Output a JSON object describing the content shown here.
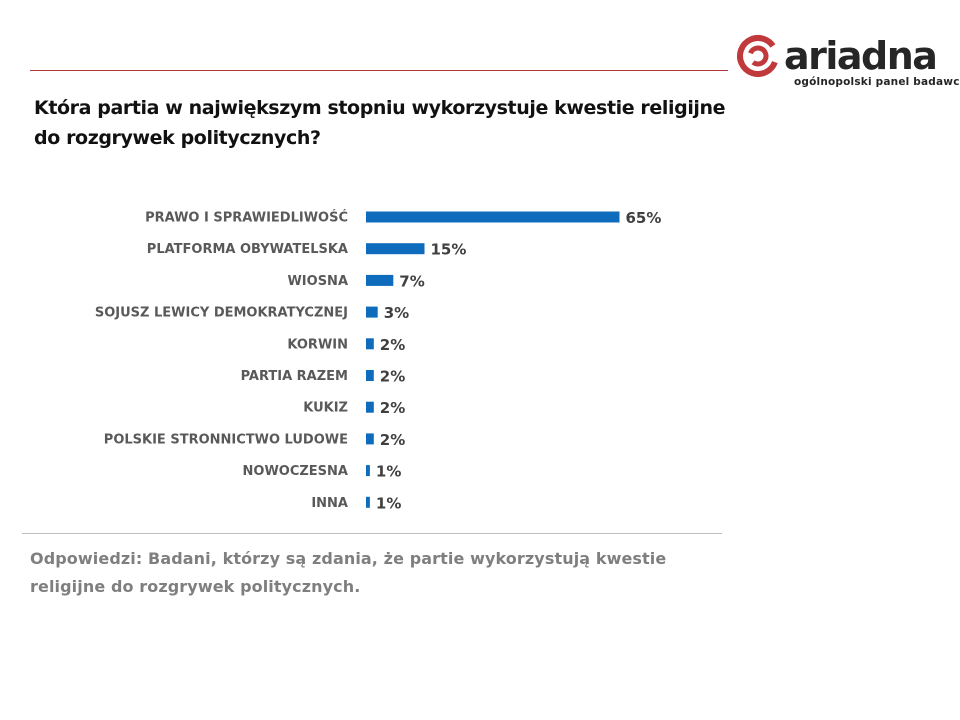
{
  "brand": {
    "name": "ariadna",
    "tagline": "ogólnopolski panel badawczy",
    "accent_color": "#c0393b",
    "text_color": "#262626"
  },
  "question": "Która partia w największym stopniu wykorzystuje kwestie religijne do rozgrywek politycznych?",
  "footnote": "Odpowiedzi:  Badani,  którzy  są  zdania,  że  partie  wykorzystują  kwestie religijne do rozgrywek politycznych.",
  "chart_data": {
    "type": "bar",
    "orientation": "horizontal",
    "categories": [
      "PRAWO I SPRAWIEDLIWOŚĆ",
      "PLATFORMA OBYWATELSKA",
      "WIOSNA",
      "SOJUSZ LEWICY DEMOKRATYCZNEJ",
      "KORWIN",
      "PARTIA RAZEM",
      "KUKIZ",
      "POLSKIE STRONNICTWO LUDOWE",
      "NOWOCZESNA",
      "INNA"
    ],
    "values": [
      65,
      15,
      7,
      3,
      2,
      2,
      2,
      2,
      1,
      1
    ],
    "value_labels": [
      "65%",
      "15%",
      "7%",
      "3%",
      "2%",
      "2%",
      "2%",
      "2%",
      "1%",
      "1%"
    ],
    "unit": "%",
    "bar_color": "#0f6cbd",
    "grid": false,
    "legend": "none"
  }
}
